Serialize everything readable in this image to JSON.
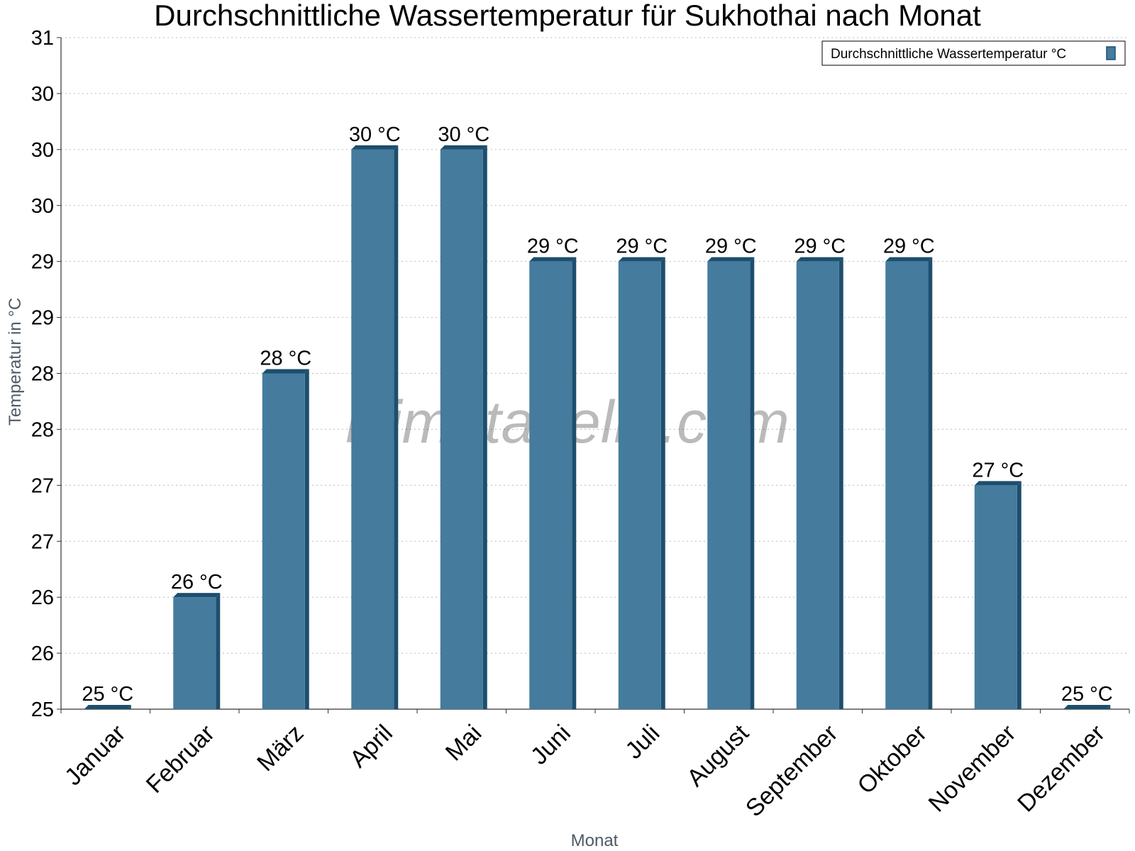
{
  "chart_data": {
    "type": "bar",
    "title": "Durchschnittliche Wassertemperatur für Sukhothai nach Monat",
    "xlabel": "Monat",
    "ylabel": "Temperatur in °C",
    "categories": [
      "Januar",
      "Februar",
      "März",
      "April",
      "Mai",
      "Juni",
      "Juli",
      "August",
      "September",
      "Oktober",
      "November",
      "Dezember"
    ],
    "series": [
      {
        "name": "Durchschnittliche Wassertemperatur °C",
        "values": [
          25,
          26,
          28,
          30,
          30,
          29,
          29,
          29,
          29,
          29,
          27,
          25
        ],
        "labels": [
          "25 °C",
          "26 °C",
          "28 °C",
          "30 °C",
          "30 °C",
          "29 °C",
          "29 °C",
          "29 °C",
          "29 °C",
          "29 °C",
          "27 °C",
          "25 °C"
        ],
        "color": "#457b9d",
        "shade_color": "#1d4e6e"
      }
    ],
    "ylim": [
      25,
      31
    ],
    "ytick_values": [
      25,
      25.5,
      26,
      26.5,
      27,
      27.5,
      28,
      28.5,
      29,
      29.5,
      30,
      30.5,
      31
    ],
    "ytick_labels": [
      "25",
      "26",
      "26",
      "27",
      "27",
      "28",
      "28",
      "29",
      "29",
      "30",
      "30",
      "30",
      "31"
    ],
    "grid": true,
    "legend_position": "top-right",
    "watermark": "klimatabelle.com"
  }
}
